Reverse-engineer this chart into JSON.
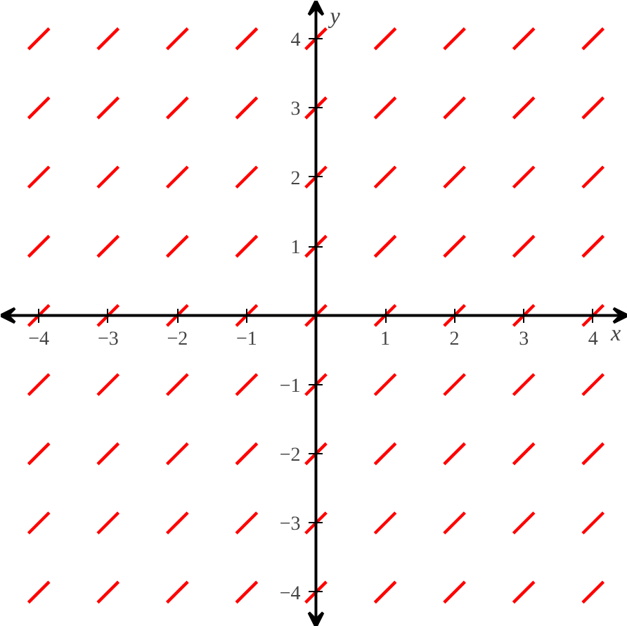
{
  "chart_data": {
    "type": "line",
    "xlabel": "x",
    "ylabel": "y",
    "xlim": [
      -4.55,
      4.5
    ],
    "ylim": [
      -4.5,
      4.55
    ],
    "xticks": [
      -4,
      -3,
      -2,
      -1,
      1,
      2,
      3,
      4
    ],
    "yticks": [
      -4,
      -3,
      -2,
      -1,
      1,
      2,
      3,
      4
    ],
    "grid": false,
    "line_style": "solid",
    "marker": "none",
    "series": [
      {
        "color": "#ff0000",
        "x": [
          -4.15,
          -3.85
        ],
        "values": [
          3.85,
          4.15
        ]
      },
      {
        "color": "#ff0000",
        "x": [
          -3.15,
          -2.85
        ],
        "values": [
          3.85,
          4.15
        ]
      },
      {
        "color": "#ff0000",
        "x": [
          -2.15,
          -1.85
        ],
        "values": [
          3.85,
          4.15
        ]
      },
      {
        "color": "#ff0000",
        "x": [
          -1.15,
          -0.85
        ],
        "values": [
          3.85,
          4.15
        ]
      },
      {
        "color": "#ff0000",
        "x": [
          -0.15,
          0.15
        ],
        "values": [
          3.85,
          4.15
        ]
      },
      {
        "color": "#ff0000",
        "x": [
          0.85,
          1.15
        ],
        "values": [
          3.85,
          4.15
        ]
      },
      {
        "color": "#ff0000",
        "x": [
          1.85,
          2.15
        ],
        "values": [
          3.85,
          4.15
        ]
      },
      {
        "color": "#ff0000",
        "x": [
          2.85,
          3.15
        ],
        "values": [
          3.85,
          4.15
        ]
      },
      {
        "color": "#ff0000",
        "x": [
          3.85,
          4.15
        ],
        "values": [
          3.85,
          4.15
        ]
      },
      {
        "color": "#ff0000",
        "x": [
          -4.15,
          -3.85
        ],
        "values": [
          2.85,
          3.15
        ]
      },
      {
        "color": "#ff0000",
        "x": [
          -3.15,
          -2.85
        ],
        "values": [
          2.85,
          3.15
        ]
      },
      {
        "color": "#ff0000",
        "x": [
          -2.15,
          -1.85
        ],
        "values": [
          2.85,
          3.15
        ]
      },
      {
        "color": "#ff0000",
        "x": [
          -1.15,
          -0.85
        ],
        "values": [
          2.85,
          3.15
        ]
      },
      {
        "color": "#ff0000",
        "x": [
          -0.15,
          0.15
        ],
        "values": [
          2.85,
          3.15
        ]
      },
      {
        "color": "#ff0000",
        "x": [
          0.85,
          1.15
        ],
        "values": [
          2.85,
          3.15
        ]
      },
      {
        "color": "#ff0000",
        "x": [
          1.85,
          2.15
        ],
        "values": [
          2.85,
          3.15
        ]
      },
      {
        "color": "#ff0000",
        "x": [
          2.85,
          3.15
        ],
        "values": [
          2.85,
          3.15
        ]
      },
      {
        "color": "#ff0000",
        "x": [
          3.85,
          4.15
        ],
        "values": [
          2.85,
          3.15
        ]
      },
      {
        "color": "#ff0000",
        "x": [
          -4.15,
          -3.85
        ],
        "values": [
          1.85,
          2.15
        ]
      },
      {
        "color": "#ff0000",
        "x": [
          -3.15,
          -2.85
        ],
        "values": [
          1.85,
          2.15
        ]
      },
      {
        "color": "#ff0000",
        "x": [
          -2.15,
          -1.85
        ],
        "values": [
          1.85,
          2.15
        ]
      },
      {
        "color": "#ff0000",
        "x": [
          -1.15,
          -0.85
        ],
        "values": [
          1.85,
          2.15
        ]
      },
      {
        "color": "#ff0000",
        "x": [
          -0.15,
          0.15
        ],
        "values": [
          1.85,
          2.15
        ]
      },
      {
        "color": "#ff0000",
        "x": [
          0.85,
          1.15
        ],
        "values": [
          1.85,
          2.15
        ]
      },
      {
        "color": "#ff0000",
        "x": [
          1.85,
          2.15
        ],
        "values": [
          1.85,
          2.15
        ]
      },
      {
        "color": "#ff0000",
        "x": [
          2.85,
          3.15
        ],
        "values": [
          1.85,
          2.15
        ]
      },
      {
        "color": "#ff0000",
        "x": [
          3.85,
          4.15
        ],
        "values": [
          1.85,
          2.15
        ]
      },
      {
        "color": "#ff0000",
        "x": [
          -4.15,
          -3.85
        ],
        "values": [
          0.85,
          1.15
        ]
      },
      {
        "color": "#ff0000",
        "x": [
          -3.15,
          -2.85
        ],
        "values": [
          0.85,
          1.15
        ]
      },
      {
        "color": "#ff0000",
        "x": [
          -2.15,
          -1.85
        ],
        "values": [
          0.85,
          1.15
        ]
      },
      {
        "color": "#ff0000",
        "x": [
          -1.15,
          -0.85
        ],
        "values": [
          0.85,
          1.15
        ]
      },
      {
        "color": "#ff0000",
        "x": [
          -0.15,
          0.15
        ],
        "values": [
          0.85,
          1.15
        ]
      },
      {
        "color": "#ff0000",
        "x": [
          0.85,
          1.15
        ],
        "values": [
          0.85,
          1.15
        ]
      },
      {
        "color": "#ff0000",
        "x": [
          1.85,
          2.15
        ],
        "values": [
          0.85,
          1.15
        ]
      },
      {
        "color": "#ff0000",
        "x": [
          2.85,
          3.15
        ],
        "values": [
          0.85,
          1.15
        ]
      },
      {
        "color": "#ff0000",
        "x": [
          3.85,
          4.15
        ],
        "values": [
          0.85,
          1.15
        ]
      },
      {
        "color": "#ff0000",
        "x": [
          -4.15,
          -3.85
        ],
        "values": [
          -0.15,
          0.15
        ]
      },
      {
        "color": "#ff0000",
        "x": [
          -3.15,
          -2.85
        ],
        "values": [
          -0.15,
          0.15
        ]
      },
      {
        "color": "#ff0000",
        "x": [
          -2.15,
          -1.85
        ],
        "values": [
          -0.15,
          0.15
        ]
      },
      {
        "color": "#ff0000",
        "x": [
          -1.15,
          -0.85
        ],
        "values": [
          -0.15,
          0.15
        ]
      },
      {
        "color": "#ff0000",
        "x": [
          -0.15,
          0.15
        ],
        "values": [
          -0.15,
          0.15
        ]
      },
      {
        "color": "#ff0000",
        "x": [
          0.85,
          1.15
        ],
        "values": [
          -0.15,
          0.15
        ]
      },
      {
        "color": "#ff0000",
        "x": [
          1.85,
          2.15
        ],
        "values": [
          -0.15,
          0.15
        ]
      },
      {
        "color": "#ff0000",
        "x": [
          2.85,
          3.15
        ],
        "values": [
          -0.15,
          0.15
        ]
      },
      {
        "color": "#ff0000",
        "x": [
          3.85,
          4.15
        ],
        "values": [
          -0.15,
          0.15
        ]
      },
      {
        "color": "#ff0000",
        "x": [
          -4.15,
          -3.85
        ],
        "values": [
          -1.15,
          -0.85
        ]
      },
      {
        "color": "#ff0000",
        "x": [
          -3.15,
          -2.85
        ],
        "values": [
          -1.15,
          -0.85
        ]
      },
      {
        "color": "#ff0000",
        "x": [
          -2.15,
          -1.85
        ],
        "values": [
          -1.15,
          -0.85
        ]
      },
      {
        "color": "#ff0000",
        "x": [
          -1.15,
          -0.85
        ],
        "values": [
          -1.15,
          -0.85
        ]
      },
      {
        "color": "#ff0000",
        "x": [
          -0.15,
          0.15
        ],
        "values": [
          -1.15,
          -0.85
        ]
      },
      {
        "color": "#ff0000",
        "x": [
          0.85,
          1.15
        ],
        "values": [
          -1.15,
          -0.85
        ]
      },
      {
        "color": "#ff0000",
        "x": [
          1.85,
          2.15
        ],
        "values": [
          -1.15,
          -0.85
        ]
      },
      {
        "color": "#ff0000",
        "x": [
          2.85,
          3.15
        ],
        "values": [
          -1.15,
          -0.85
        ]
      },
      {
        "color": "#ff0000",
        "x": [
          3.85,
          4.15
        ],
        "values": [
          -1.15,
          -0.85
        ]
      },
      {
        "color": "#ff0000",
        "x": [
          -4.15,
          -3.85
        ],
        "values": [
          -2.15,
          -1.85
        ]
      },
      {
        "color": "#ff0000",
        "x": [
          -3.15,
          -2.85
        ],
        "values": [
          -2.15,
          -1.85
        ]
      },
      {
        "color": "#ff0000",
        "x": [
          -2.15,
          -1.85
        ],
        "values": [
          -2.15,
          -1.85
        ]
      },
      {
        "color": "#ff0000",
        "x": [
          -1.15,
          -0.85
        ],
        "values": [
          -2.15,
          -1.85
        ]
      },
      {
        "color": "#ff0000",
        "x": [
          -0.15,
          0.15
        ],
        "values": [
          -2.15,
          -1.85
        ]
      },
      {
        "color": "#ff0000",
        "x": [
          0.85,
          1.15
        ],
        "values": [
          -2.15,
          -1.85
        ]
      },
      {
        "color": "#ff0000",
        "x": [
          1.85,
          2.15
        ],
        "values": [
          -2.15,
          -1.85
        ]
      },
      {
        "color": "#ff0000",
        "x": [
          2.85,
          3.15
        ],
        "values": [
          -2.15,
          -1.85
        ]
      },
      {
        "color": "#ff0000",
        "x": [
          3.85,
          4.15
        ],
        "values": [
          -2.15,
          -1.85
        ]
      },
      {
        "color": "#ff0000",
        "x": [
          -4.15,
          -3.85
        ],
        "values": [
          -3.15,
          -2.85
        ]
      },
      {
        "color": "#ff0000",
        "x": [
          -3.15,
          -2.85
        ],
        "values": [
          -3.15,
          -2.85
        ]
      },
      {
        "color": "#ff0000",
        "x": [
          -2.15,
          -1.85
        ],
        "values": [
          -3.15,
          -2.85
        ]
      },
      {
        "color": "#ff0000",
        "x": [
          -1.15,
          -0.85
        ],
        "values": [
          -3.15,
          -2.85
        ]
      },
      {
        "color": "#ff0000",
        "x": [
          -0.15,
          0.15
        ],
        "values": [
          -3.15,
          -2.85
        ]
      },
      {
        "color": "#ff0000",
        "x": [
          0.85,
          1.15
        ],
        "values": [
          -3.15,
          -2.85
        ]
      },
      {
        "color": "#ff0000",
        "x": [
          1.85,
          2.15
        ],
        "values": [
          -3.15,
          -2.85
        ]
      },
      {
        "color": "#ff0000",
        "x": [
          2.85,
          3.15
        ],
        "values": [
          -3.15,
          -2.85
        ]
      },
      {
        "color": "#ff0000",
        "x": [
          3.85,
          4.15
        ],
        "values": [
          -3.15,
          -2.85
        ]
      },
      {
        "color": "#ff0000",
        "x": [
          -4.15,
          -3.85
        ],
        "values": [
          -4.15,
          -3.85
        ]
      },
      {
        "color": "#ff0000",
        "x": [
          -3.15,
          -2.85
        ],
        "values": [
          -4.15,
          -3.85
        ]
      },
      {
        "color": "#ff0000",
        "x": [
          -2.15,
          -1.85
        ],
        "values": [
          -4.15,
          -3.85
        ]
      },
      {
        "color": "#ff0000",
        "x": [
          -1.15,
          -0.85
        ],
        "values": [
          -4.15,
          -3.85
        ]
      },
      {
        "color": "#ff0000",
        "x": [
          -0.15,
          0.15
        ],
        "values": [
          -4.15,
          -3.85
        ]
      },
      {
        "color": "#ff0000",
        "x": [
          0.85,
          1.15
        ],
        "values": [
          -4.15,
          -3.85
        ]
      },
      {
        "color": "#ff0000",
        "x": [
          1.85,
          2.15
        ],
        "values": [
          -4.15,
          -3.85
        ]
      },
      {
        "color": "#ff0000",
        "x": [
          2.85,
          3.15
        ],
        "values": [
          -4.15,
          -3.85
        ]
      },
      {
        "color": "#ff0000",
        "x": [
          3.85,
          4.15
        ],
        "values": [
          -4.15,
          -3.85
        ]
      }
    ]
  }
}
